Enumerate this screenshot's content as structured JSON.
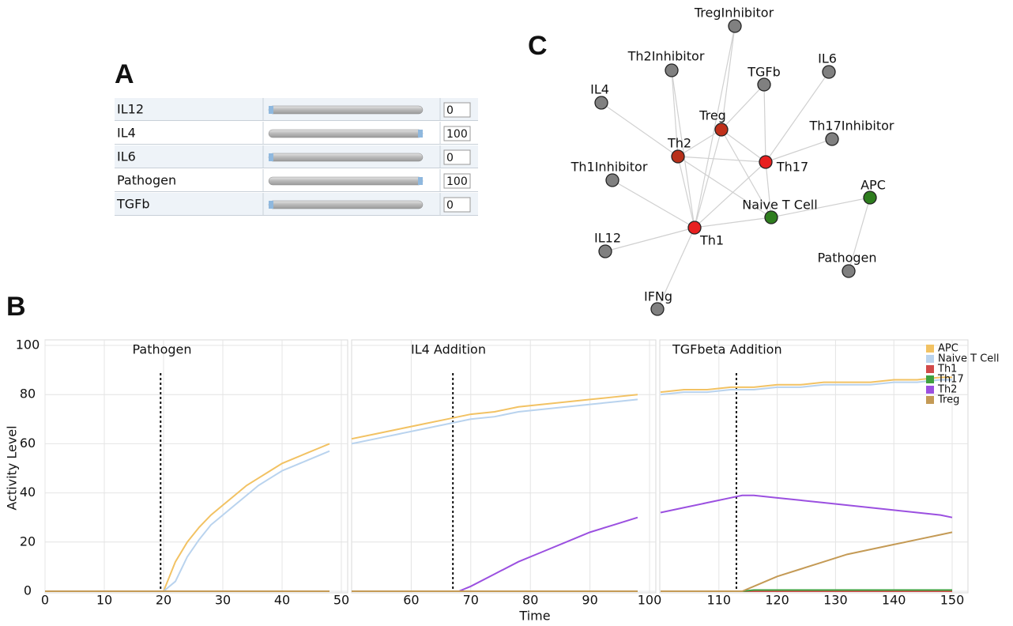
{
  "panel_a": {
    "label": "A",
    "slider_range": [
      0,
      100
    ],
    "sliders": [
      {
        "name": "IL12",
        "value": 0
      },
      {
        "name": "IL4",
        "value": 100
      },
      {
        "name": "IL6",
        "value": 0
      },
      {
        "name": "Pathogen",
        "value": 100
      },
      {
        "name": "TGFb",
        "value": 0
      }
    ]
  },
  "panel_b": {
    "label": "B"
  },
  "panel_c": {
    "label": "C",
    "nodes": [
      {
        "label": "TregInhibitor",
        "color": "#808080"
      },
      {
        "label": "Th2Inhibitor",
        "color": "#808080"
      },
      {
        "label": "TGFb",
        "color": "#808080"
      },
      {
        "label": "IL6",
        "color": "#808080"
      },
      {
        "label": "IL4",
        "color": "#808080"
      },
      {
        "label": "Treg",
        "color": "#c0301a"
      },
      {
        "label": "Th17Inhibitor",
        "color": "#808080"
      },
      {
        "label": "Th2",
        "color": "#b8301a"
      },
      {
        "label": "Th17",
        "color": "#e82020"
      },
      {
        "label": "Th1Inhibitor",
        "color": "#808080"
      },
      {
        "label": "APC",
        "color": "#2e7d1e"
      },
      {
        "label": "Naive T Cell",
        "color": "#2e7d1e"
      },
      {
        "label": "Th1",
        "color": "#e82020"
      },
      {
        "label": "IL12",
        "color": "#808080"
      },
      {
        "label": "Pathogen",
        "color": "#808080"
      },
      {
        "label": "IFNg",
        "color": "#808080"
      }
    ]
  },
  "chart_data": [
    {
      "type": "line",
      "title": "Pathogen",
      "ylabel": "Activity Level",
      "x": [
        0,
        4,
        8,
        12,
        16,
        20,
        22,
        24,
        26,
        28,
        30,
        32,
        34,
        36,
        38,
        40,
        42,
        44,
        46,
        48
      ],
      "xlim": [
        0,
        50
      ],
      "xticks": [
        0,
        10,
        20,
        30,
        40,
        50
      ],
      "ylim": [
        0,
        100
      ],
      "yticks": [
        0,
        20,
        40,
        60,
        80,
        100
      ],
      "grid": true,
      "vline": 19.5,
      "series": [
        {
          "color": "#f2c263",
          "values": [
            0,
            0,
            0,
            0,
            0,
            0,
            12,
            20,
            26,
            31,
            35,
            39,
            43,
            46,
            49,
            52,
            54,
            56,
            58,
            60
          ]
        },
        {
          "color": "#b9d3ee",
          "values": [
            0,
            0,
            0,
            0,
            0,
            0,
            4,
            14,
            21,
            27,
            31,
            35,
            39,
            43,
            46,
            49,
            51,
            53,
            55,
            57
          ]
        },
        {
          "color": "#d24a4a",
          "values": [
            0,
            0,
            0,
            0,
            0,
            0,
            0,
            0,
            0,
            0,
            0,
            0,
            0,
            0,
            0,
            0,
            0,
            0,
            0,
            0
          ]
        },
        {
          "color": "#3fa13f",
          "values": [
            0,
            0,
            0,
            0,
            0,
            0,
            0,
            0,
            0,
            0,
            0,
            0,
            0,
            0,
            0,
            0,
            0,
            0,
            0,
            0
          ]
        },
        {
          "color": "#9b50e0",
          "values": [
            0,
            0,
            0,
            0,
            0,
            0,
            0,
            0,
            0,
            0,
            0,
            0,
            0,
            0,
            0,
            0,
            0,
            0,
            0,
            0
          ]
        },
        {
          "color": "#c49a55",
          "values": [
            0,
            0,
            0,
            0,
            0,
            0,
            0,
            0,
            0,
            0,
            0,
            0,
            0,
            0,
            0,
            0,
            0,
            0,
            0,
            0
          ]
        }
      ]
    },
    {
      "type": "line",
      "title": "IL4 Addition",
      "xlabel": "Time",
      "x": [
        50,
        54,
        58,
        62,
        66,
        68,
        70,
        74,
        78,
        82,
        86,
        90,
        94,
        98
      ],
      "xlim": [
        50,
        100
      ],
      "xticks": [
        60,
        70,
        80,
        90,
        100
      ],
      "ylim": [
        0,
        100
      ],
      "yticks": [
        0,
        20,
        40,
        60,
        80,
        100
      ],
      "grid": true,
      "vline": 67,
      "series": [
        {
          "color": "#f2c263",
          "values": [
            62,
            64,
            66,
            68,
            70,
            71,
            72,
            73,
            75,
            76,
            77,
            78,
            79,
            80
          ]
        },
        {
          "color": "#b9d3ee",
          "values": [
            60,
            62,
            64,
            66,
            68,
            69,
            70,
            71,
            73,
            74,
            75,
            76,
            77,
            78
          ]
        },
        {
          "color": "#d24a4a",
          "values": [
            0,
            0,
            0,
            0,
            0,
            0,
            0,
            0,
            0,
            0,
            0,
            0,
            0,
            0
          ]
        },
        {
          "color": "#3fa13f",
          "values": [
            0,
            0,
            0,
            0,
            0,
            0,
            0,
            0,
            0,
            0,
            0,
            0,
            0,
            0
          ]
        },
        {
          "color": "#9b50e0",
          "values": [
            0,
            0,
            0,
            0,
            0,
            0,
            2,
            7,
            12,
            16,
            20,
            24,
            27,
            30
          ]
        },
        {
          "color": "#c49a55",
          "values": [
            0,
            0,
            0,
            0,
            0,
            0,
            0,
            0,
            0,
            0,
            0,
            0,
            0,
            0
          ]
        }
      ]
    },
    {
      "type": "line",
      "title": "TGFbeta Addition",
      "legend": "upper right",
      "x": [
        100,
        104,
        108,
        112,
        114,
        116,
        120,
        124,
        128,
        132,
        136,
        140,
        144,
        148,
        150
      ],
      "xlim": [
        100,
        150
      ],
      "xticks": [
        110,
        120,
        130,
        140,
        150
      ],
      "ylim": [
        0,
        100
      ],
      "yticks": [
        0,
        20,
        40,
        60,
        80,
        100
      ],
      "grid": true,
      "vline": 113,
      "series": [
        {
          "name": "APC",
          "color": "#f2c263",
          "values": [
            81,
            82,
            82,
            83,
            83,
            83,
            84,
            84,
            85,
            85,
            85,
            86,
            86,
            87,
            87
          ]
        },
        {
          "name": "Naive T Cell",
          "color": "#b9d3ee",
          "values": [
            80,
            81,
            81,
            82,
            82,
            82,
            83,
            83,
            84,
            84,
            84,
            85,
            85,
            86,
            86
          ]
        },
        {
          "name": "Th1",
          "color": "#d24a4a",
          "values": [
            0,
            0,
            0,
            0,
            0,
            0,
            0,
            0,
            0,
            0,
            0,
            0,
            0,
            0,
            0
          ]
        },
        {
          "name": "Th17",
          "color": "#3fa13f",
          "values": [
            0,
            0,
            0,
            0,
            0,
            0.5,
            0.5,
            0.5,
            0.5,
            0.5,
            0.5,
            0.5,
            0.5,
            0.5,
            0.5
          ]
        },
        {
          "name": "Th2",
          "color": "#9b50e0",
          "values": [
            32,
            34,
            36,
            38,
            39,
            39,
            38,
            37,
            36,
            35,
            34,
            33,
            32,
            31,
            30
          ]
        },
        {
          "name": "Treg",
          "color": "#c49a55",
          "values": [
            0,
            0,
            0,
            0,
            0,
            2,
            6,
            9,
            12,
            15,
            17,
            19,
            21,
            23,
            24
          ]
        }
      ]
    }
  ]
}
